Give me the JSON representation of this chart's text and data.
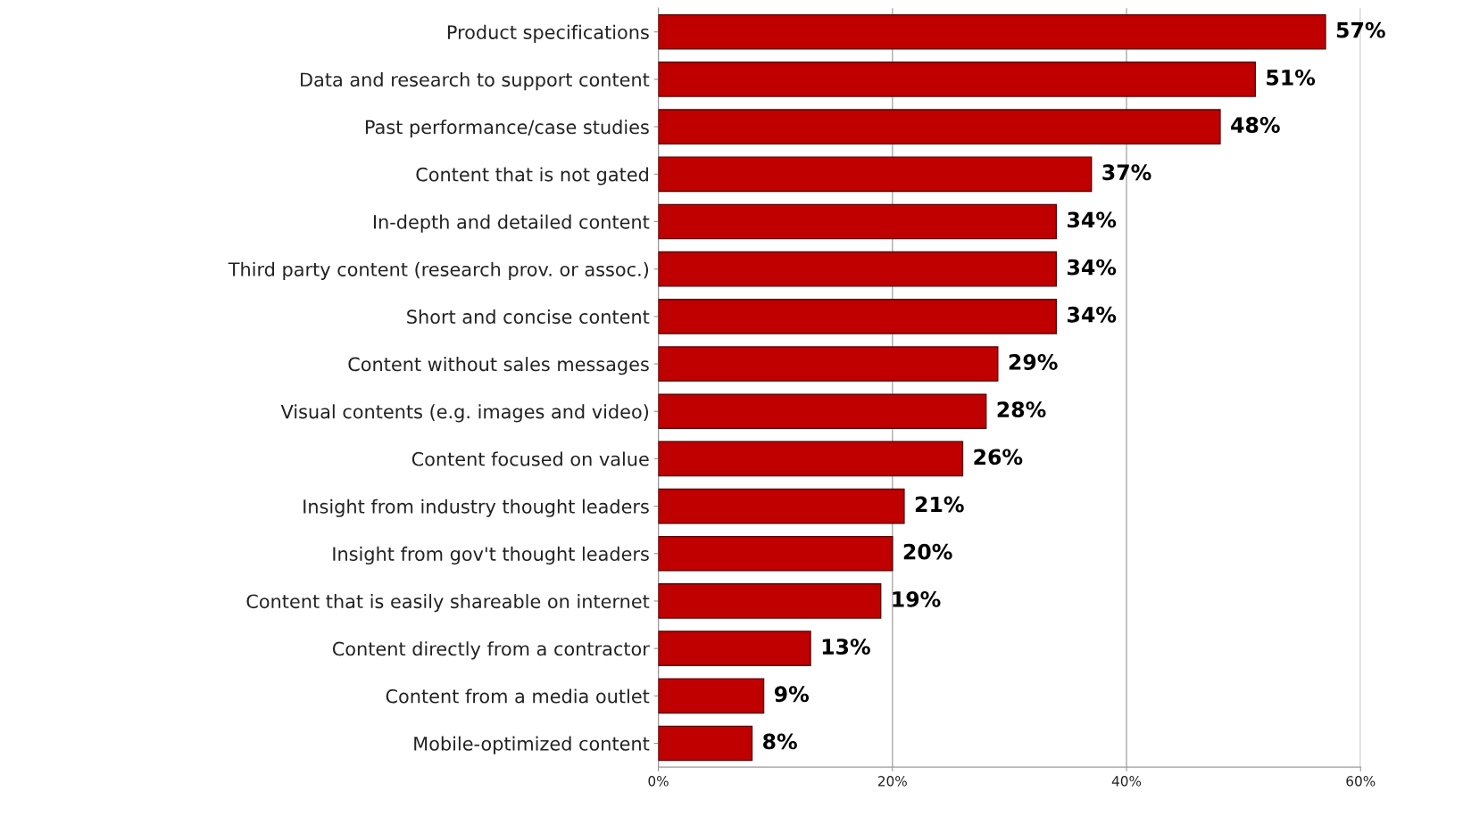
{
  "chart_data": {
    "type": "bar",
    "orientation": "horizontal",
    "categories": [
      "Product specifications",
      "Data and research to support content",
      "Past performance/case studies",
      "Content that is not gated",
      "In-depth and detailed content",
      "Third party content (research prov. or assoc.)",
      "Short and concise content",
      "Content without sales messages",
      "Visual contents (e.g. images and video)",
      "Content focused on value",
      "Insight from industry thought leaders",
      "Insight from gov't thought leaders",
      "Content that is easily shareable on internet",
      "Content directly from a contractor",
      "Content from a media outlet",
      "Mobile-optimized content"
    ],
    "values": [
      57,
      51,
      48,
      37,
      34,
      34,
      34,
      29,
      28,
      26,
      21,
      20,
      19,
      13,
      9,
      8
    ],
    "value_labels": [
      "57%",
      "51%",
      "48%",
      "37%",
      "34%",
      "34%",
      "34%",
      "29%",
      "28%",
      "26%",
      "21%",
      "20%",
      "19%",
      "13%",
      "9%",
      "8%"
    ],
    "color": "#c00000",
    "xlim": [
      0,
      60
    ],
    "xticks": [
      {
        "value": 0,
        "label": "0%"
      },
      {
        "value": 20,
        "label": "20%"
      },
      {
        "value": 40,
        "label": "40%"
      },
      {
        "value": 60,
        "label": "60%"
      }
    ],
    "grid": "x",
    "legend": false
  }
}
